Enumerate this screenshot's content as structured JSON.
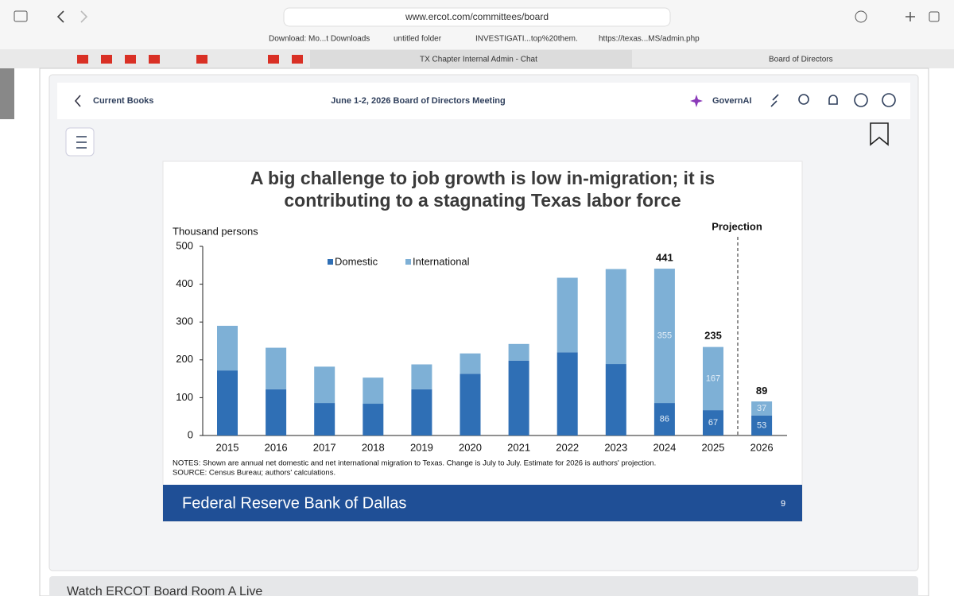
{
  "browser": {
    "url": "www.ercot.com/committees/board",
    "bookmarks": [
      "Download: Mo...t Downloads",
      "untitled folder",
      "INVESTIGATI...top%20them.",
      "https://texas...MS/admin.php"
    ],
    "tabs": [
      "TX Chapter Internal Admin - Chat",
      "Board of Directors"
    ]
  },
  "app": {
    "back": "Current Books",
    "meeting": "June 1-2, 2026 Board of Directors Meeting",
    "assistant": "GovernAI"
  },
  "slide": {
    "chart_data": {
      "type": "stacked-bar",
      "title": [
        "A big challenge to job growth is low in-migration; it is",
        "contributing to a stagnating Texas labor force"
      ],
      "y_label": "Thousand persons",
      "annotation": "Projection",
      "categories": [
        "2015",
        "2016",
        "2017",
        "2018",
        "2019",
        "2020",
        "2021",
        "2022",
        "2023",
        "2024",
        "2025",
        "2026"
      ],
      "series": [
        {
          "name": "Domestic",
          "color": "#2f6fb5",
          "values": [
            172,
            122,
            86,
            84,
            122,
            163,
            198,
            220,
            189,
            86,
            67,
            53
          ]
        },
        {
          "name": "International",
          "color": "#7eb0d6",
          "values": [
            118,
            110,
            96,
            69,
            66,
            54,
            44,
            197,
            251,
            355,
            167,
            37
          ]
        }
      ],
      "totals": [
        null,
        null,
        null,
        null,
        null,
        null,
        null,
        null,
        null,
        441,
        235,
        89
      ],
      "ylim": [
        0,
        500
      ],
      "yticks": [
        0,
        100,
        200,
        300,
        400,
        500
      ],
      "notes": [
        "NOTES: Shown are annual net domestic and net international migration to Texas. Change is July to July. Estimate for 2026 is authors' projection.",
        "SOURCE: Census Bureau; authors' calculations."
      ]
    },
    "footer": "Federal Reserve Bank of Dallas",
    "page": 9
  },
  "below": "Watch ERCOT Board Room A Live"
}
